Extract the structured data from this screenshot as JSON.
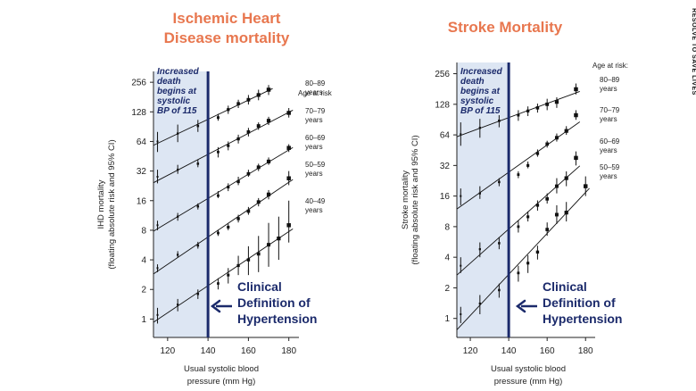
{
  "side_label": "RESOLVE TO SAVE LIVES",
  "colors": {
    "title": "#e8774f",
    "threshold": "#1b2a6b",
    "shade": "#dde6f3",
    "data": "#111111"
  },
  "chart_data": [
    {
      "type": "scatter",
      "title_lines": [
        "Ischemic Heart",
        "Disease mortality"
      ],
      "xlabel_lines": [
        "Usual systolic blood",
        "pressure (mm Hg)"
      ],
      "ylabel_lines": [
        "IHD mortality",
        "(floating absolute risk and 95% CI)"
      ],
      "xlim": [
        113,
        185
      ],
      "ylim": [
        0.65,
        330
      ],
      "y_scale": "log2",
      "x_ticks": [
        120,
        140,
        160,
        180
      ],
      "y_ticks": [
        1,
        2,
        4,
        8,
        16,
        32,
        64,
        128,
        256
      ],
      "threshold_x": 140,
      "shade_x": [
        113,
        140
      ],
      "note_lines": [
        "Increased",
        "death",
        "begins at",
        "systolic",
        "BP of 115"
      ],
      "annotation_lines": [
        "Clinical",
        "Definition of",
        "Hypertension"
      ],
      "legend_title": "Age at risk",
      "series": [
        {
          "name": "80–89 years",
          "age_lines": [
            "80–89",
            "years"
          ],
          "x": [
            115,
            125,
            135,
            145,
            150,
            155,
            160,
            165,
            170
          ],
          "y": [
            64,
            77,
            92,
            112,
            135,
            155,
            170,
            190,
            215
          ],
          "lo": [
            50,
            63,
            80,
            104,
            122,
            140,
            152,
            168,
            190
          ],
          "hi": [
            80,
            95,
            106,
            122,
            148,
            170,
            190,
            215,
            240
          ]
        },
        {
          "name": "70–79 years",
          "age_lines": [
            "70–79",
            "years"
          ],
          "x": [
            115,
            125,
            135,
            145,
            150,
            155,
            160,
            165,
            170,
            180
          ],
          "y": [
            28,
            33,
            38,
            50,
            58,
            68,
            80,
            92,
            104,
            125
          ],
          "lo": [
            24,
            30,
            35,
            44,
            52,
            61,
            72,
            84,
            94,
            112
          ],
          "hi": [
            33,
            37,
            42,
            56,
            64,
            75,
            88,
            100,
            114,
            140
          ]
        },
        {
          "name": "60–69 years",
          "age_lines": [
            "60–69",
            "years"
          ],
          "x": [
            115,
            125,
            135,
            145,
            150,
            155,
            160,
            165,
            170,
            180
          ],
          "y": [
            9,
            11,
            14,
            18,
            22,
            25,
            30,
            35,
            40,
            55
          ],
          "lo": [
            8,
            10,
            13,
            17,
            20,
            23,
            28,
            32,
            37,
            50
          ],
          "hi": [
            10,
            12,
            15,
            20,
            24,
            28,
            33,
            38,
            44,
            60
          ]
        },
        {
          "name": "50–59 years",
          "age_lines": [
            "50–59",
            "years"
          ],
          "x": [
            115,
            125,
            135,
            145,
            150,
            155,
            160,
            165,
            170,
            180
          ],
          "y": [
            3.3,
            4.5,
            5.6,
            7.5,
            8.6,
            10.5,
            12.5,
            15.5,
            18.5,
            27
          ],
          "lo": [
            3.0,
            4.2,
            5.2,
            7.0,
            8.0,
            9.6,
            11.5,
            14.0,
            16.5,
            23
          ],
          "hi": [
            3.6,
            4.9,
            6.1,
            8.1,
            9.3,
            11.5,
            13.8,
            17.0,
            20.5,
            32
          ]
        },
        {
          "name": "40–49 years",
          "age_lines": [
            "40–49",
            "years"
          ],
          "x": [
            115,
            125,
            135,
            145,
            150,
            155,
            160,
            165,
            170,
            175,
            180
          ],
          "y": [
            1.1,
            1.4,
            1.8,
            2.3,
            2.8,
            3.5,
            4.0,
            4.6,
            5.7,
            6.6,
            9.0
          ],
          "lo": [
            0.9,
            1.2,
            1.6,
            2.0,
            2.3,
            2.8,
            2.8,
            3.0,
            3.4,
            4.0,
            6.0
          ],
          "hi": [
            1.3,
            1.6,
            2.0,
            2.6,
            3.3,
            4.4,
            5.5,
            7.0,
            9.5,
            11.0,
            16.0
          ]
        }
      ]
    },
    {
      "type": "scatter",
      "title_lines": [
        "Stroke Mortality"
      ],
      "xlabel_lines": [
        "Usual systolic blood",
        "pressure (mm Hg)"
      ],
      "ylabel_lines": [
        "Stroke mortality",
        "(floating absolute risk and 95% CI)"
      ],
      "xlim": [
        113,
        185
      ],
      "ylim": [
        0.65,
        330
      ],
      "y_scale": "log2",
      "x_ticks": [
        120,
        140,
        160,
        180
      ],
      "y_ticks": [
        1,
        2,
        4,
        8,
        16,
        32,
        64,
        128,
        256
      ],
      "threshold_x": 140,
      "shade_x": [
        113,
        140
      ],
      "note_lines": [
        "Increased",
        "death",
        "begins at",
        "systolic",
        "BP of 115"
      ],
      "annotation_lines": [
        "Clinical",
        "Definition of",
        "Hypertension"
      ],
      "legend_title": "Age at risk:",
      "series": [
        {
          "name": "80–89 years",
          "age_lines": [
            "80–89",
            "years"
          ],
          "x": [
            115,
            125,
            135,
            145,
            150,
            155,
            160,
            165,
            175
          ],
          "y": [
            65,
            75,
            88,
            100,
            110,
            118,
            128,
            135,
            180
          ],
          "lo": [
            50,
            60,
            76,
            88,
            98,
            106,
            112,
            118,
            160
          ],
          "hi": [
            85,
            92,
            100,
            112,
            122,
            130,
            145,
            150,
            205
          ]
        },
        {
          "name": "70–79 years",
          "age_lines": [
            "70–79",
            "years"
          ],
          "x": [
            115,
            125,
            135,
            145,
            150,
            155,
            160,
            165,
            170,
            175
          ],
          "y": [
            16,
            17,
            22,
            26,
            32,
            42,
            52,
            60,
            70,
            100
          ],
          "lo": [
            13,
            15,
            20,
            24,
            30,
            39,
            48,
            55,
            64,
            90
          ],
          "hi": [
            19,
            20,
            24,
            28,
            35,
            46,
            56,
            66,
            78,
            112
          ]
        },
        {
          "name": "60–69 years",
          "age_lines": [
            "60–69",
            "years"
          ],
          "x": [
            115,
            125,
            135,
            145,
            150,
            155,
            160,
            165,
            170,
            175
          ],
          "y": [
            3.3,
            4.8,
            5.5,
            8,
            10,
            13,
            15,
            20,
            24,
            38
          ],
          "lo": [
            2.8,
            4.0,
            4.8,
            7.0,
            9.0,
            11.5,
            13.5,
            17,
            20,
            32
          ],
          "hi": [
            4.0,
            5.6,
            6.3,
            9.2,
            11.3,
            14.5,
            17,
            24,
            28,
            44
          ]
        },
        {
          "name": "50–59 years",
          "age_lines": [
            "50–59",
            "years"
          ],
          "x": [
            115,
            125,
            135,
            145,
            150,
            155,
            160,
            165,
            170,
            180
          ],
          "y": [
            1.1,
            1.4,
            1.9,
            2.8,
            3.5,
            4.5,
            7.5,
            10.5,
            11,
            20
          ],
          "lo": [
            0.9,
            1.1,
            1.6,
            2.3,
            2.8,
            3.8,
            6.5,
            8.5,
            9.0,
            16
          ],
          "hi": [
            1.3,
            1.7,
            2.2,
            3.3,
            4.2,
            5.2,
            8.8,
            13,
            14,
            25
          ]
        }
      ]
    }
  ]
}
